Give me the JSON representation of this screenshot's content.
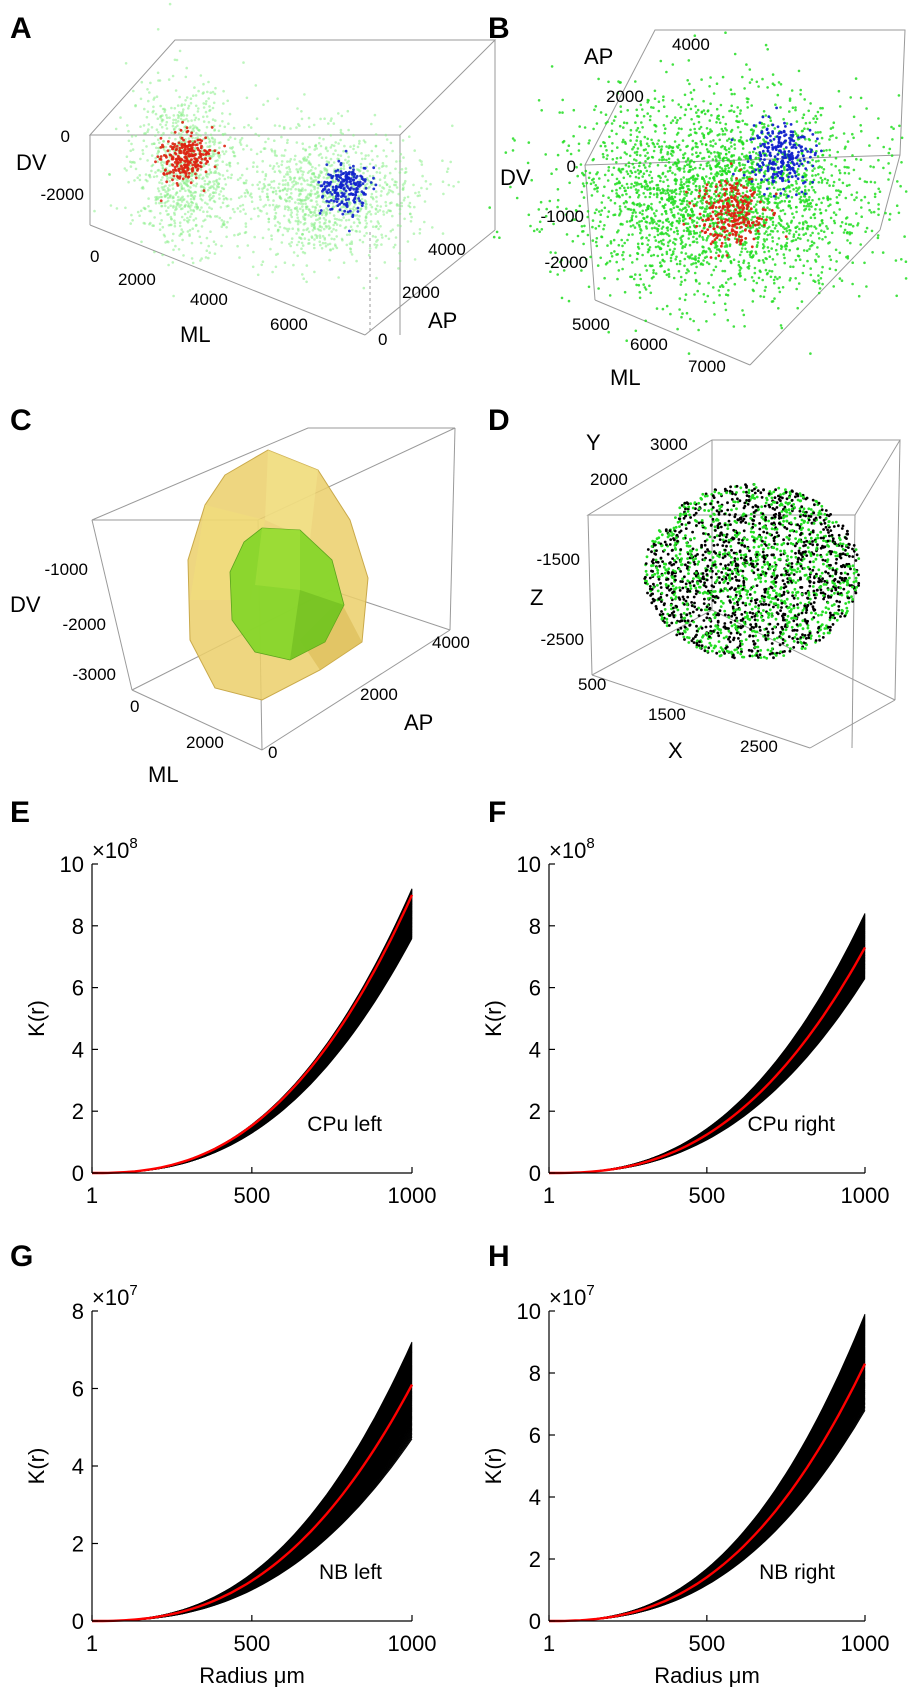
{
  "panels": {
    "A": {
      "letter": "A",
      "axis_labels": {
        "dv": "DV",
        "ml": "ML",
        "ap": "AP"
      },
      "dv_ticks": [
        "0",
        "-2000"
      ],
      "ml_ticks": [
        "0",
        "2000",
        "4000",
        "6000"
      ],
      "ap_ticks": [
        "0",
        "2000",
        "4000"
      ]
    },
    "B": {
      "letter": "B",
      "axis_labels": {
        "ap": "AP",
        "dv": "DV",
        "ml": "ML"
      },
      "ap_ticks": [
        "4000",
        "2000"
      ],
      "dv_ticks": [
        "0",
        "-1000",
        "-2000"
      ],
      "ml_ticks": [
        "5000",
        "6000",
        "7000"
      ]
    },
    "C": {
      "letter": "C",
      "axis_labels": {
        "dv": "DV",
        "ml": "ML",
        "ap": "AP"
      },
      "dv_ticks": [
        "-1000",
        "-2000",
        "-3000"
      ],
      "ml_ticks": [
        "0",
        "2000"
      ],
      "ap_ticks": [
        "0",
        "2000",
        "4000"
      ]
    },
    "D": {
      "letter": "D",
      "axis_labels": {
        "y": "Y",
        "z": "Z",
        "x": "X"
      },
      "y_ticks": [
        "3000",
        "2000"
      ],
      "z_ticks": [
        "-1500",
        "-2500"
      ],
      "x_ticks": [
        "500",
        "1500",
        "2500"
      ]
    }
  },
  "colors": {
    "cloud_green": "#22dd22",
    "cloud_light_green": "#88ee88",
    "cluster_red": "#dd2211",
    "cluster_blue": "#1122cc",
    "hull_outer": "#e8c85a",
    "hull_inner": "#7acc22",
    "sim_lines": "#000000",
    "observed_line": "#ff0000"
  },
  "chart_data": [
    {
      "panel": "E",
      "type": "line",
      "ylabel": "K(r)",
      "xlabel": "",
      "exponent": "×10",
      "exponent_power": "8",
      "annotation": "CPu left",
      "xlim": [
        1,
        1000
      ],
      "ylim": [
        0,
        10
      ],
      "x_ticks": [
        "1",
        "500",
        "1000"
      ],
      "y_ticks": [
        "0",
        "2",
        "4",
        "6",
        "8",
        "10"
      ],
      "sim_range_at_1000": [
        7.6,
        9.2
      ],
      "observed_at_1000": 9.0
    },
    {
      "panel": "F",
      "type": "line",
      "ylabel": "K(r)",
      "xlabel": "",
      "exponent": "×10",
      "exponent_power": "8",
      "annotation": "CPu right",
      "xlim": [
        1,
        1000
      ],
      "ylim": [
        0,
        10
      ],
      "x_ticks": [
        "1",
        "500",
        "1000"
      ],
      "y_ticks": [
        "0",
        "2",
        "4",
        "6",
        "8",
        "10"
      ],
      "sim_range_at_1000": [
        6.3,
        8.4
      ],
      "observed_at_1000": 7.3
    },
    {
      "panel": "G",
      "type": "line",
      "ylabel": "K(r)",
      "xlabel": "Radius μm",
      "exponent": "×10",
      "exponent_power": "7",
      "annotation": "NB left",
      "xlim": [
        1,
        1000
      ],
      "ylim": [
        0,
        8
      ],
      "x_ticks": [
        "1",
        "500",
        "1000"
      ],
      "y_ticks": [
        "0",
        "2",
        "4",
        "6",
        "8"
      ],
      "sim_range_at_1000": [
        4.7,
        7.2
      ],
      "observed_at_1000": 6.1
    },
    {
      "panel": "H",
      "type": "line",
      "ylabel": "K(r)",
      "xlabel": "Radius μm",
      "exponent": "×10",
      "exponent_power": "7",
      "annotation": "NB right",
      "xlim": [
        1,
        1000
      ],
      "ylim": [
        0,
        10
      ],
      "x_ticks": [
        "1",
        "500",
        "1000"
      ],
      "y_ticks": [
        "0",
        "2",
        "4",
        "6",
        "8",
        "10"
      ],
      "sim_range_at_1000": [
        6.8,
        9.9
      ],
      "observed_at_1000": 8.3
    }
  ]
}
